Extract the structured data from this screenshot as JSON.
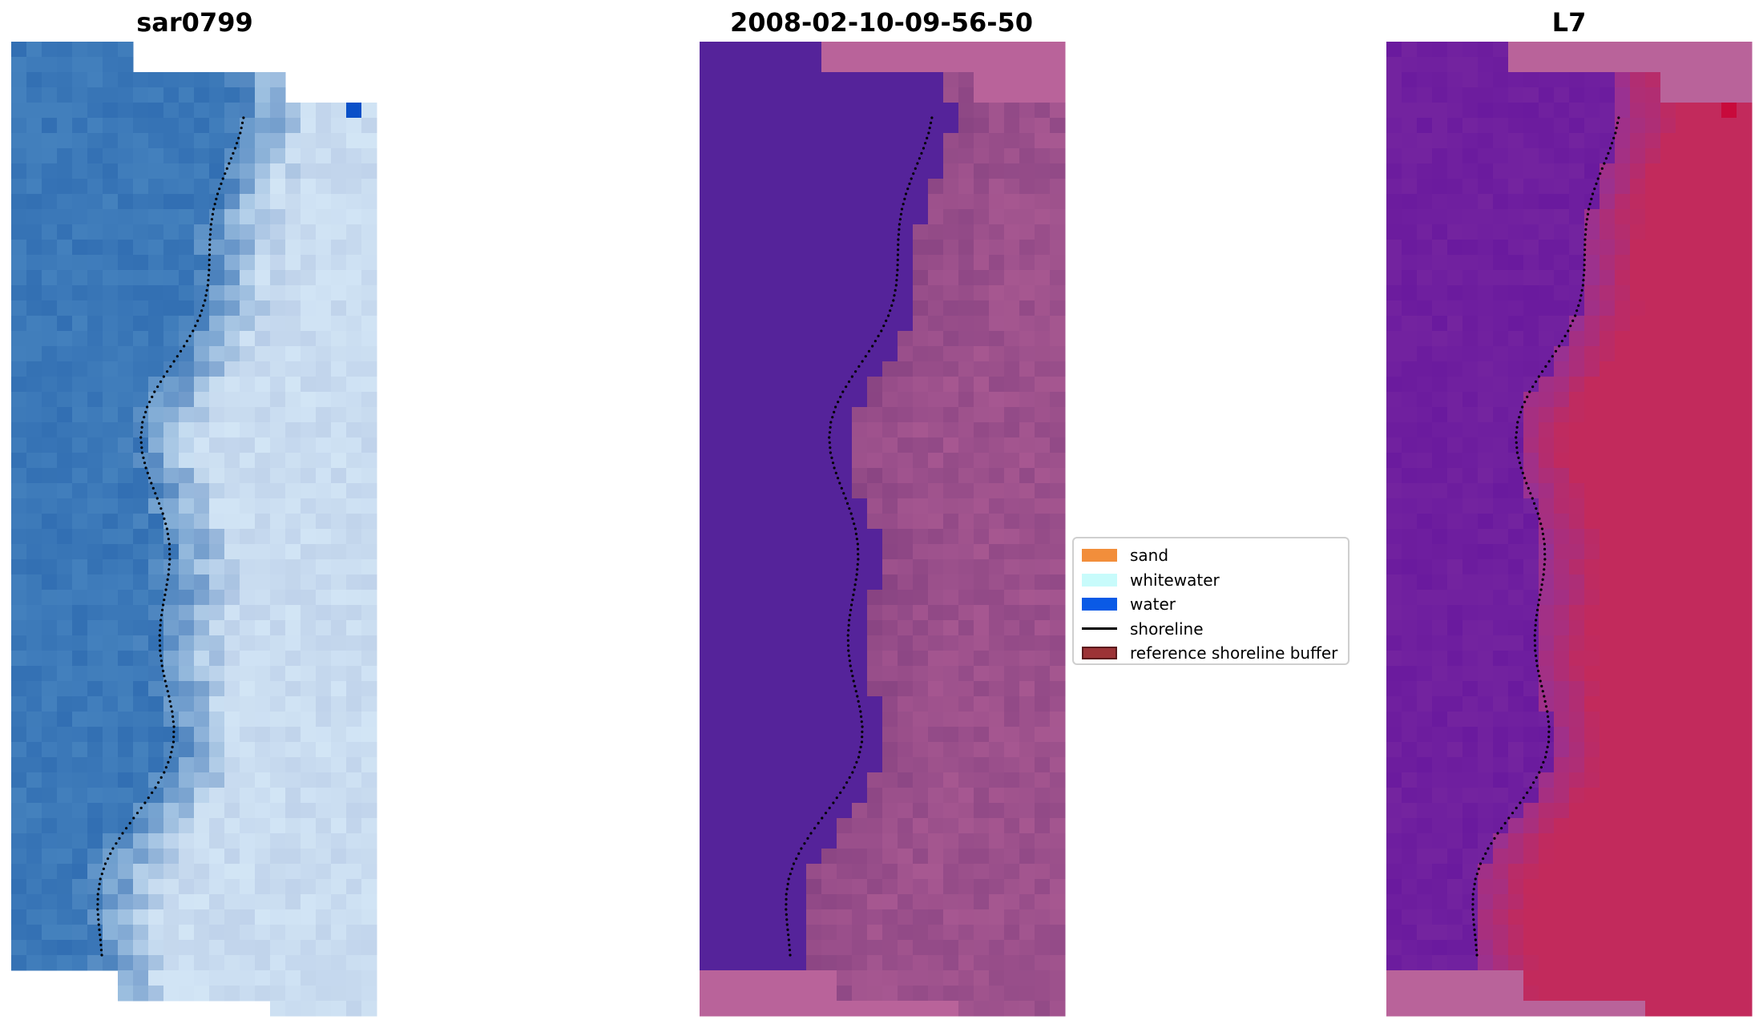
{
  "titles": {
    "left": "sar0799",
    "middle": "2008-02-10-09-56-50",
    "right": "L7"
  },
  "legend": {
    "items": [
      {
        "label": "sand",
        "kind": "patch",
        "color": "#f28e3b"
      },
      {
        "label": "whitewater",
        "kind": "patch",
        "color": "#c8fbfb"
      },
      {
        "label": "water",
        "kind": "patch",
        "color": "#0a5ae6"
      },
      {
        "label": "shoreline",
        "kind": "line",
        "color": "#000000"
      },
      {
        "label": "reference shoreline buffer",
        "kind": "patch",
        "color": "#9c3336",
        "edge": "#5a1a1c"
      }
    ]
  },
  "colors": {
    "rgb_water": "#3b78b8",
    "rgb_surf": "#c9dcf0",
    "class_water": "#55239a",
    "buffer_overlay": "#b9639a",
    "index_low": "#6a1a9e",
    "index_high": "#c22a5c",
    "shoreline_dots": "#000000"
  }
}
